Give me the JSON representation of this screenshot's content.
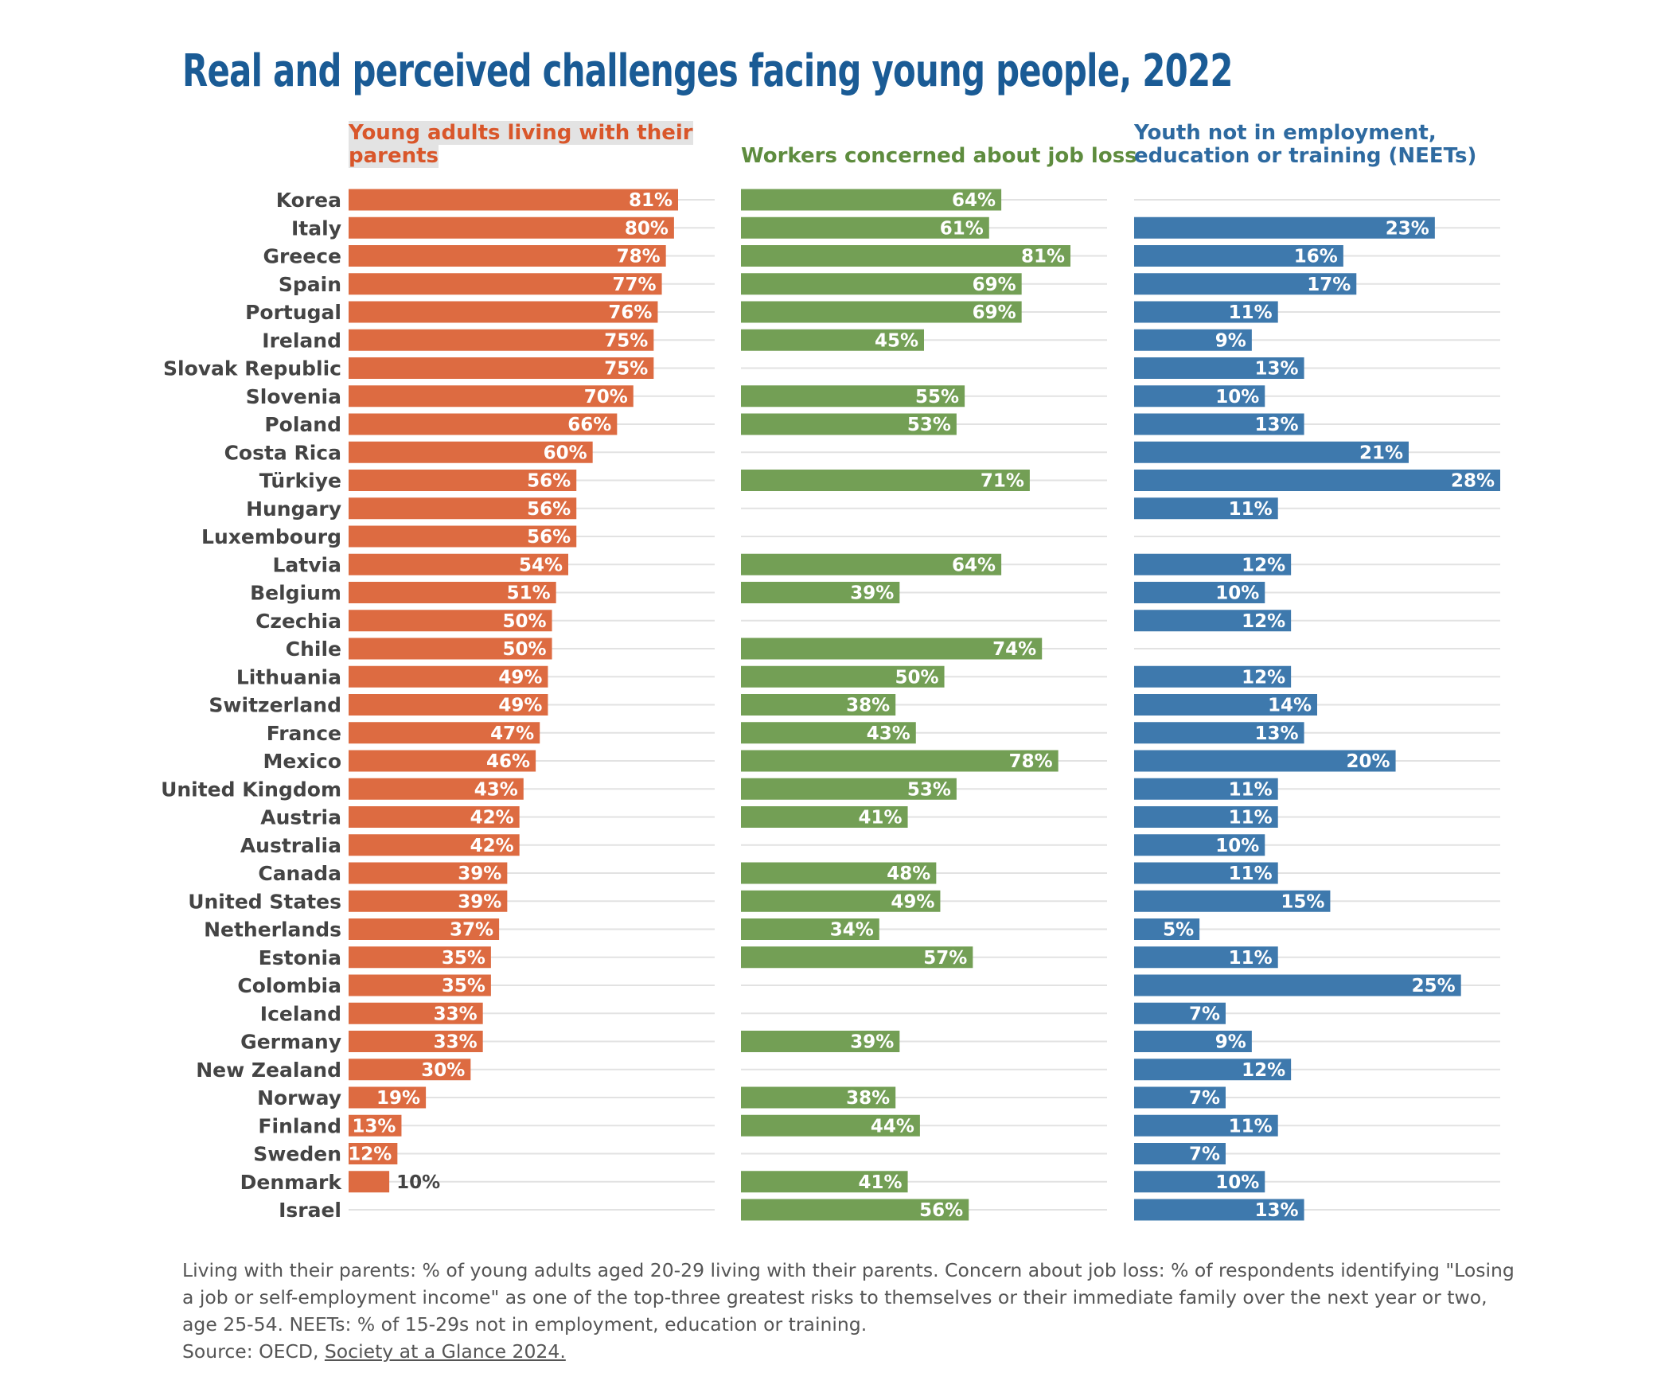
{
  "chart_data": {
    "type": "bar",
    "title": "Real and perceived challenges facing young people, 2022",
    "categories": [
      "Korea",
      "Italy",
      "Greece",
      "Spain",
      "Portugal",
      "Ireland",
      "Slovak Republic",
      "Slovenia",
      "Poland",
      "Costa Rica",
      "Türkiye",
      "Hungary",
      "Luxembourg",
      "Latvia",
      "Belgium",
      "Czechia",
      "Chile",
      "Lithuania",
      "Switzerland",
      "France",
      "Mexico",
      "United Kingdom",
      "Austria",
      "Australia",
      "Canada",
      "United States",
      "Netherlands",
      "Estonia",
      "Colombia",
      "Iceland",
      "Germany",
      "New Zealand",
      "Norway",
      "Finland",
      "Sweden",
      "Denmark",
      "Israel"
    ],
    "value_suffix": "%",
    "series": [
      {
        "name": "Young adults living with their parents",
        "color": "#dd6b41",
        "xlim": [
          0,
          90
        ],
        "values": [
          81,
          80,
          78,
          77,
          76,
          75,
          75,
          70,
          66,
          60,
          56,
          56,
          56,
          54,
          51,
          50,
          50,
          49,
          49,
          47,
          46,
          43,
          42,
          42,
          39,
          39,
          37,
          35,
          35,
          33,
          33,
          30,
          19,
          13,
          12,
          10,
          null
        ]
      },
      {
        "name": "Workers concerned about job loss",
        "color": "#739f55",
        "xlim": [
          0,
          90
        ],
        "values": [
          64,
          61,
          81,
          69,
          69,
          45,
          null,
          55,
          53,
          null,
          71,
          null,
          null,
          64,
          39,
          null,
          74,
          50,
          38,
          43,
          78,
          53,
          41,
          null,
          48,
          49,
          34,
          57,
          null,
          null,
          39,
          null,
          38,
          44,
          null,
          41,
          56
        ]
      },
      {
        "name": "Youth not in employment, education or training (NEETs)",
        "color": "#3e79ad",
        "xlim": [
          0,
          28
        ],
        "values": [
          null,
          23,
          16,
          17,
          11,
          9,
          13,
          10,
          13,
          21,
          28,
          11,
          null,
          12,
          10,
          12,
          null,
          12,
          14,
          13,
          20,
          11,
          11,
          10,
          11,
          15,
          5,
          11,
          25,
          7,
          9,
          12,
          7,
          11,
          7,
          10,
          13
        ]
      }
    ]
  },
  "footnote": "Living with their parents: % of young adults aged 20-29 living with their parents. Concern about job loss: % of respondents identifying \"Losing a job or self-employment income\" as one of the top-three greatest risks to themselves or their immediate family over the next year or two, age 25-54. NEETs: % of 15-29s not in employment, education or training.",
  "source_prefix": "Source: OECD, ",
  "source_link": "Society at a Glance 2024."
}
